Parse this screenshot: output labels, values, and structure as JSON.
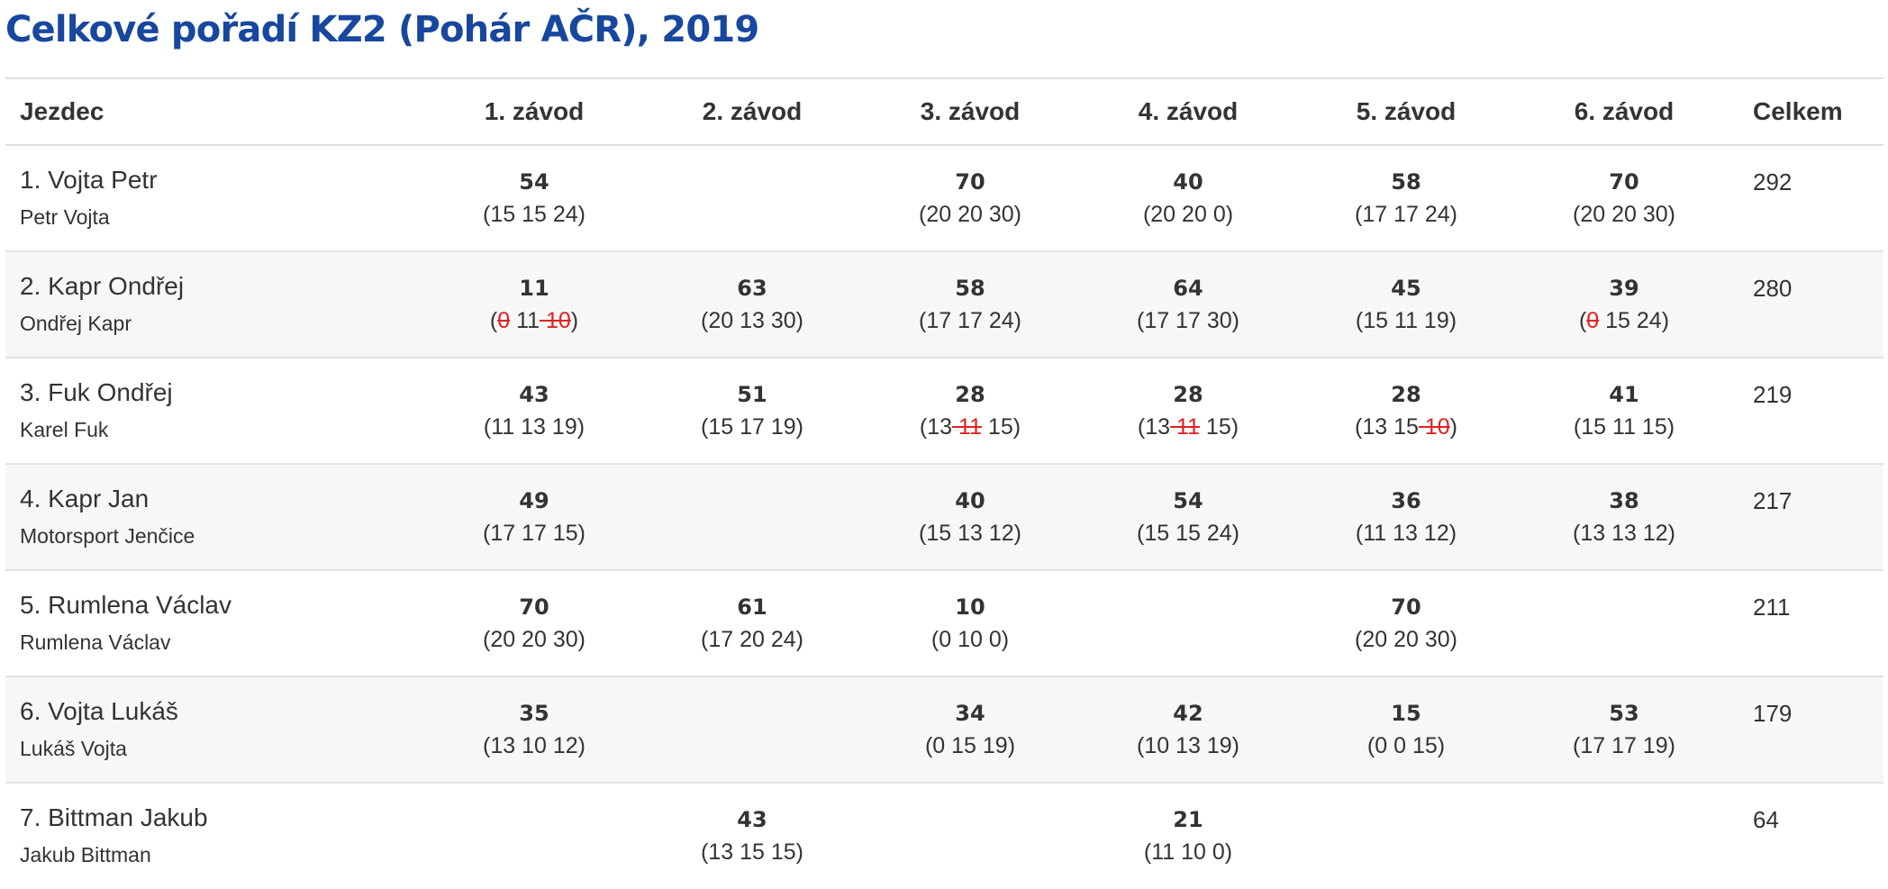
{
  "title": "Celkové pořadí KZ2 (Pohár AČR), 2019",
  "headers": {
    "rider": "Jezdec",
    "races": [
      "1. závod",
      "2. závod",
      "3. závod",
      "4. závod",
      "5. závod",
      "6. závod"
    ],
    "total": "Celkem"
  },
  "rows": [
    {
      "name": "1. Vojta Petr",
      "team": "Petr Vojta",
      "total": "292",
      "races": [
        {
          "total": "54",
          "parts": [
            {
              "v": "15"
            },
            {
              "v": "15"
            },
            {
              "v": "24"
            }
          ]
        },
        null,
        {
          "total": "70",
          "parts": [
            {
              "v": "20"
            },
            {
              "v": "20"
            },
            {
              "v": "30"
            }
          ]
        },
        {
          "total": "40",
          "parts": [
            {
              "v": "20"
            },
            {
              "v": "20"
            },
            {
              "v": "0"
            }
          ]
        },
        {
          "total": "58",
          "parts": [
            {
              "v": "17"
            },
            {
              "v": "17"
            },
            {
              "v": "24"
            }
          ]
        },
        {
          "total": "70",
          "parts": [
            {
              "v": "20"
            },
            {
              "v": "20"
            },
            {
              "v": "30"
            }
          ]
        }
      ]
    },
    {
      "name": "2. Kapr Ondřej",
      "team": "Ondřej Kapr",
      "total": "280",
      "races": [
        {
          "total": "11",
          "parts": [
            {
              "v": "0",
              "dropped": true
            },
            {
              "v": "11"
            },
            {
              "v": "10",
              "dropped": true
            }
          ]
        },
        {
          "total": "63",
          "parts": [
            {
              "v": "20"
            },
            {
              "v": "13"
            },
            {
              "v": "30"
            }
          ]
        },
        {
          "total": "58",
          "parts": [
            {
              "v": "17"
            },
            {
              "v": "17"
            },
            {
              "v": "24"
            }
          ]
        },
        {
          "total": "64",
          "parts": [
            {
              "v": "17"
            },
            {
              "v": "17"
            },
            {
              "v": "30"
            }
          ]
        },
        {
          "total": "45",
          "parts": [
            {
              "v": "15"
            },
            {
              "v": "11"
            },
            {
              "v": "19"
            }
          ]
        },
        {
          "total": "39",
          "parts": [
            {
              "v": "0",
              "dropped": true
            },
            {
              "v": "15"
            },
            {
              "v": "24"
            }
          ]
        }
      ]
    },
    {
      "name": "3. Fuk Ondřej",
      "team": "Karel Fuk",
      "total": "219",
      "races": [
        {
          "total": "43",
          "parts": [
            {
              "v": "11"
            },
            {
              "v": "13"
            },
            {
              "v": "19"
            }
          ]
        },
        {
          "total": "51",
          "parts": [
            {
              "v": "15"
            },
            {
              "v": "17"
            },
            {
              "v": "19"
            }
          ]
        },
        {
          "total": "28",
          "parts": [
            {
              "v": "13"
            },
            {
              "v": "11",
              "dropped": true
            },
            {
              "v": "15"
            }
          ]
        },
        {
          "total": "28",
          "parts": [
            {
              "v": "13"
            },
            {
              "v": "11",
              "dropped": true
            },
            {
              "v": "15"
            }
          ]
        },
        {
          "total": "28",
          "parts": [
            {
              "v": "13"
            },
            {
              "v": "15"
            },
            {
              "v": "10",
              "dropped": true
            }
          ]
        },
        {
          "total": "41",
          "parts": [
            {
              "v": "15"
            },
            {
              "v": "11"
            },
            {
              "v": "15"
            }
          ]
        }
      ]
    },
    {
      "name": "4. Kapr Jan",
      "team": "Motorsport Jenčice",
      "total": "217",
      "races": [
        {
          "total": "49",
          "parts": [
            {
              "v": "17"
            },
            {
              "v": "17"
            },
            {
              "v": "15"
            }
          ]
        },
        null,
        {
          "total": "40",
          "parts": [
            {
              "v": "15"
            },
            {
              "v": "13"
            },
            {
              "v": "12"
            }
          ]
        },
        {
          "total": "54",
          "parts": [
            {
              "v": "15"
            },
            {
              "v": "15"
            },
            {
              "v": "24"
            }
          ]
        },
        {
          "total": "36",
          "parts": [
            {
              "v": "11"
            },
            {
              "v": "13"
            },
            {
              "v": "12"
            }
          ]
        },
        {
          "total": "38",
          "parts": [
            {
              "v": "13"
            },
            {
              "v": "13"
            },
            {
              "v": "12"
            }
          ]
        }
      ]
    },
    {
      "name": "5. Rumlena Václav",
      "team": "Rumlena Václav",
      "total": "211",
      "races": [
        {
          "total": "70",
          "parts": [
            {
              "v": "20"
            },
            {
              "v": "20"
            },
            {
              "v": "30"
            }
          ]
        },
        {
          "total": "61",
          "parts": [
            {
              "v": "17"
            },
            {
              "v": "20"
            },
            {
              "v": "24"
            }
          ]
        },
        {
          "total": "10",
          "parts": [
            {
              "v": "0"
            },
            {
              "v": "10"
            },
            {
              "v": "0"
            }
          ]
        },
        null,
        {
          "total": "70",
          "parts": [
            {
              "v": "20"
            },
            {
              "v": "20"
            },
            {
              "v": "30"
            }
          ]
        },
        null
      ]
    },
    {
      "name": "6. Vojta Lukáš",
      "team": "Lukáš Vojta",
      "total": "179",
      "races": [
        {
          "total": "35",
          "parts": [
            {
              "v": "13"
            },
            {
              "v": "10"
            },
            {
              "v": "12"
            }
          ]
        },
        null,
        {
          "total": "34",
          "parts": [
            {
              "v": "0"
            },
            {
              "v": "15"
            },
            {
              "v": "19"
            }
          ]
        },
        {
          "total": "42",
          "parts": [
            {
              "v": "10"
            },
            {
              "v": "13"
            },
            {
              "v": "19"
            }
          ]
        },
        {
          "total": "15",
          "parts": [
            {
              "v": "0"
            },
            {
              "v": "0"
            },
            {
              "v": "15"
            }
          ]
        },
        {
          "total": "53",
          "parts": [
            {
              "v": "17"
            },
            {
              "v": "17"
            },
            {
              "v": "19"
            }
          ]
        }
      ]
    },
    {
      "name": "7. Bittman Jakub",
      "team": "Jakub Bittman",
      "total": "64",
      "races": [
        null,
        {
          "total": "43",
          "parts": [
            {
              "v": "13"
            },
            {
              "v": "15"
            },
            {
              "v": "15"
            }
          ]
        },
        null,
        {
          "total": "21",
          "parts": [
            {
              "v": "11"
            },
            {
              "v": "10"
            },
            {
              "v": "0"
            }
          ]
        },
        null,
        null
      ]
    }
  ],
  "colors": {
    "title": "#17479e",
    "text": "#333333",
    "dropped": "#e02222",
    "stripe": "#f7f7f7",
    "border": "#e2e2e2"
  }
}
